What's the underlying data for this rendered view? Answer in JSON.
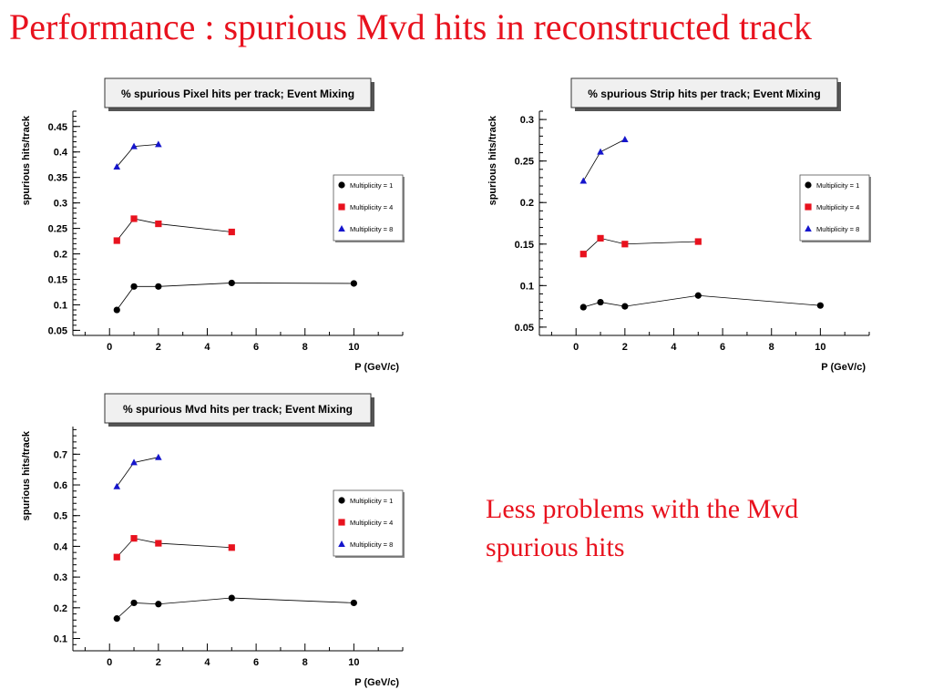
{
  "slide": {
    "title": "Performance : spurious Mvd hits in reconstructed track",
    "comment_line1": "Less problems with the Mvd",
    "comment_line2": "spurious hits",
    "title_color": "#e8121e"
  },
  "colors": {
    "m1": "#000000",
    "m4": "#e8121e",
    "m8": "#1515cc"
  },
  "chart_data": [
    {
      "type": "line",
      "title": "% spurious Pixel hits per track; Event Mixing",
      "xlabel": "P (GeV/c)",
      "ylabel": "spurious hits/track",
      "xlim": [
        -1.5,
        12
      ],
      "ylim": [
        0.04,
        0.48
      ],
      "xticks": [
        0,
        2,
        4,
        6,
        8,
        10
      ],
      "yticks": [
        0.05,
        0.1,
        0.15,
        0.2,
        0.25,
        0.3,
        0.35,
        0.4,
        0.45
      ],
      "legend_position": "right",
      "series": [
        {
          "name": "Multiplicity = 1",
          "marker": "circle",
          "x": [
            0.3,
            1,
            2,
            5,
            10
          ],
          "y": [
            0.09,
            0.136,
            0.136,
            0.143,
            0.142
          ]
        },
        {
          "name": "Multiplicity = 4",
          "marker": "square",
          "x": [
            0.3,
            1,
            2,
            5
          ],
          "y": [
            0.226,
            0.269,
            0.259,
            0.243
          ]
        },
        {
          "name": "Multiplicity = 8",
          "marker": "triangle",
          "x": [
            0.3,
            1,
            2
          ],
          "y": [
            0.371,
            0.411,
            0.415
          ]
        }
      ]
    },
    {
      "type": "line",
      "title": "% spurious Strip hits per track; Event Mixing",
      "xlabel": "P (GeV/c)",
      "ylabel": "spurious hits/track",
      "xlim": [
        -1.5,
        12
      ],
      "ylim": [
        0.04,
        0.31
      ],
      "xticks": [
        0,
        2,
        4,
        6,
        8,
        10
      ],
      "yticks": [
        0.05,
        0.1,
        0.15,
        0.2,
        0.25,
        0.3
      ],
      "legend_position": "right",
      "series": [
        {
          "name": "Multiplicity = 1",
          "marker": "circle",
          "x": [
            0.3,
            1,
            2,
            5,
            10
          ],
          "y": [
            0.074,
            0.08,
            0.075,
            0.088,
            0.076
          ]
        },
        {
          "name": "Multiplicity = 4",
          "marker": "square",
          "x": [
            0.3,
            1,
            2,
            5
          ],
          "y": [
            0.138,
            0.157,
            0.15,
            0.153
          ]
        },
        {
          "name": "Multiplicity = 8",
          "marker": "triangle",
          "x": [
            0.3,
            1,
            2
          ],
          "y": [
            0.226,
            0.261,
            0.276
          ]
        }
      ]
    },
    {
      "type": "line",
      "title": "% spurious Mvd hits per track; Event Mixing",
      "xlabel": "P (GeV/c)",
      "ylabel": "spurious hits/track",
      "xlim": [
        -1.5,
        12
      ],
      "ylim": [
        0.06,
        0.79
      ],
      "xticks": [
        0,
        2,
        4,
        6,
        8,
        10
      ],
      "yticks": [
        0.1,
        0.2,
        0.3,
        0.4,
        0.5,
        0.6,
        0.7
      ],
      "legend_position": "right",
      "series": [
        {
          "name": "Multiplicity = 1",
          "marker": "circle",
          "x": [
            0.3,
            1,
            2,
            5,
            10
          ],
          "y": [
            0.165,
            0.216,
            0.212,
            0.232,
            0.216
          ]
        },
        {
          "name": "Multiplicity = 4",
          "marker": "square",
          "x": [
            0.3,
            1,
            2,
            5
          ],
          "y": [
            0.365,
            0.426,
            0.41,
            0.396
          ]
        },
        {
          "name": "Multiplicity = 8",
          "marker": "triangle",
          "x": [
            0.3,
            1,
            2
          ],
          "y": [
            0.595,
            0.673,
            0.69
          ]
        }
      ]
    }
  ]
}
